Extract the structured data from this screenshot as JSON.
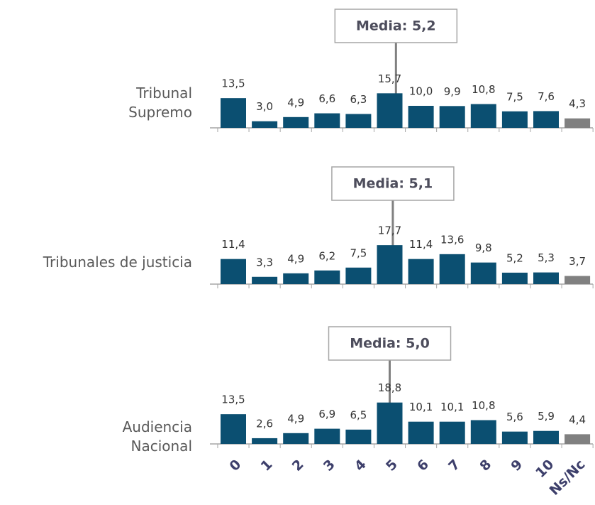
{
  "chart_data": [
    {
      "type": "bar",
      "title": "Tribunal Supremo",
      "values": [
        13.5,
        3.0,
        4.9,
        6.6,
        6.3,
        15.7,
        10.0,
        9.9,
        10.8,
        7.5,
        7.6,
        4.3
      ],
      "value_labels": [
        "13,5",
        "3,0",
        "4,9",
        "6,6",
        "6,3",
        "15,7",
        "10,0",
        "9,9",
        "10,8",
        "7,5",
        "7,6",
        "4,3"
      ],
      "colors": [
        "#0b4f71",
        "#0b4f71",
        "#0b4f71",
        "#0b4f71",
        "#0b4f71",
        "#0b4f71",
        "#0b4f71",
        "#0b4f71",
        "#0b4f71",
        "#0b4f71",
        "#0b4f71",
        "#808080"
      ],
      "mean": {
        "value": 5.2,
        "label": "Media: 5,2"
      },
      "ylim": [
        0,
        20
      ]
    },
    {
      "type": "bar",
      "title": "Tribunales de justicia",
      "values": [
        11.4,
        3.3,
        4.9,
        6.2,
        7.5,
        17.7,
        11.4,
        13.6,
        9.8,
        5.2,
        5.3,
        3.7
      ],
      "value_labels": [
        "11,4",
        "3,3",
        "4,9",
        "6,2",
        "7,5",
        "17,7",
        "11,4",
        "13,6",
        "9,8",
        "5,2",
        "5,3",
        "3,7"
      ],
      "colors": [
        "#0b4f71",
        "#0b4f71",
        "#0b4f71",
        "#0b4f71",
        "#0b4f71",
        "#0b4f71",
        "#0b4f71",
        "#0b4f71",
        "#0b4f71",
        "#0b4f71",
        "#0b4f71",
        "#808080"
      ],
      "mean": {
        "value": 5.1,
        "label": "Media: 5,1"
      },
      "ylim": [
        0,
        20
      ]
    },
    {
      "type": "bar",
      "title": "Audiencia Nacional",
      "categories": [
        "0",
        "1",
        "2",
        "3",
        "4",
        "5",
        "6",
        "7",
        "8",
        "9",
        "10",
        "Ns/Nc"
      ],
      "values": [
        13.5,
        2.6,
        4.9,
        6.9,
        6.5,
        18.8,
        10.1,
        10.1,
        10.8,
        5.6,
        5.9,
        4.4
      ],
      "value_labels": [
        "13,5",
        "2,6",
        "4,9",
        "6,9",
        "6,5",
        "18,8",
        "10,1",
        "10,1",
        "10,8",
        "5,6",
        "5,9",
        "4,4"
      ],
      "colors": [
        "#0b4f71",
        "#0b4f71",
        "#0b4f71",
        "#0b4f71",
        "#0b4f71",
        "#0b4f71",
        "#0b4f71",
        "#0b4f71",
        "#0b4f71",
        "#0b4f71",
        "#0b4f71",
        "#808080"
      ],
      "mean": {
        "value": 5.0,
        "label": "Media: 5,0"
      },
      "ylim": [
        0,
        20
      ]
    }
  ]
}
